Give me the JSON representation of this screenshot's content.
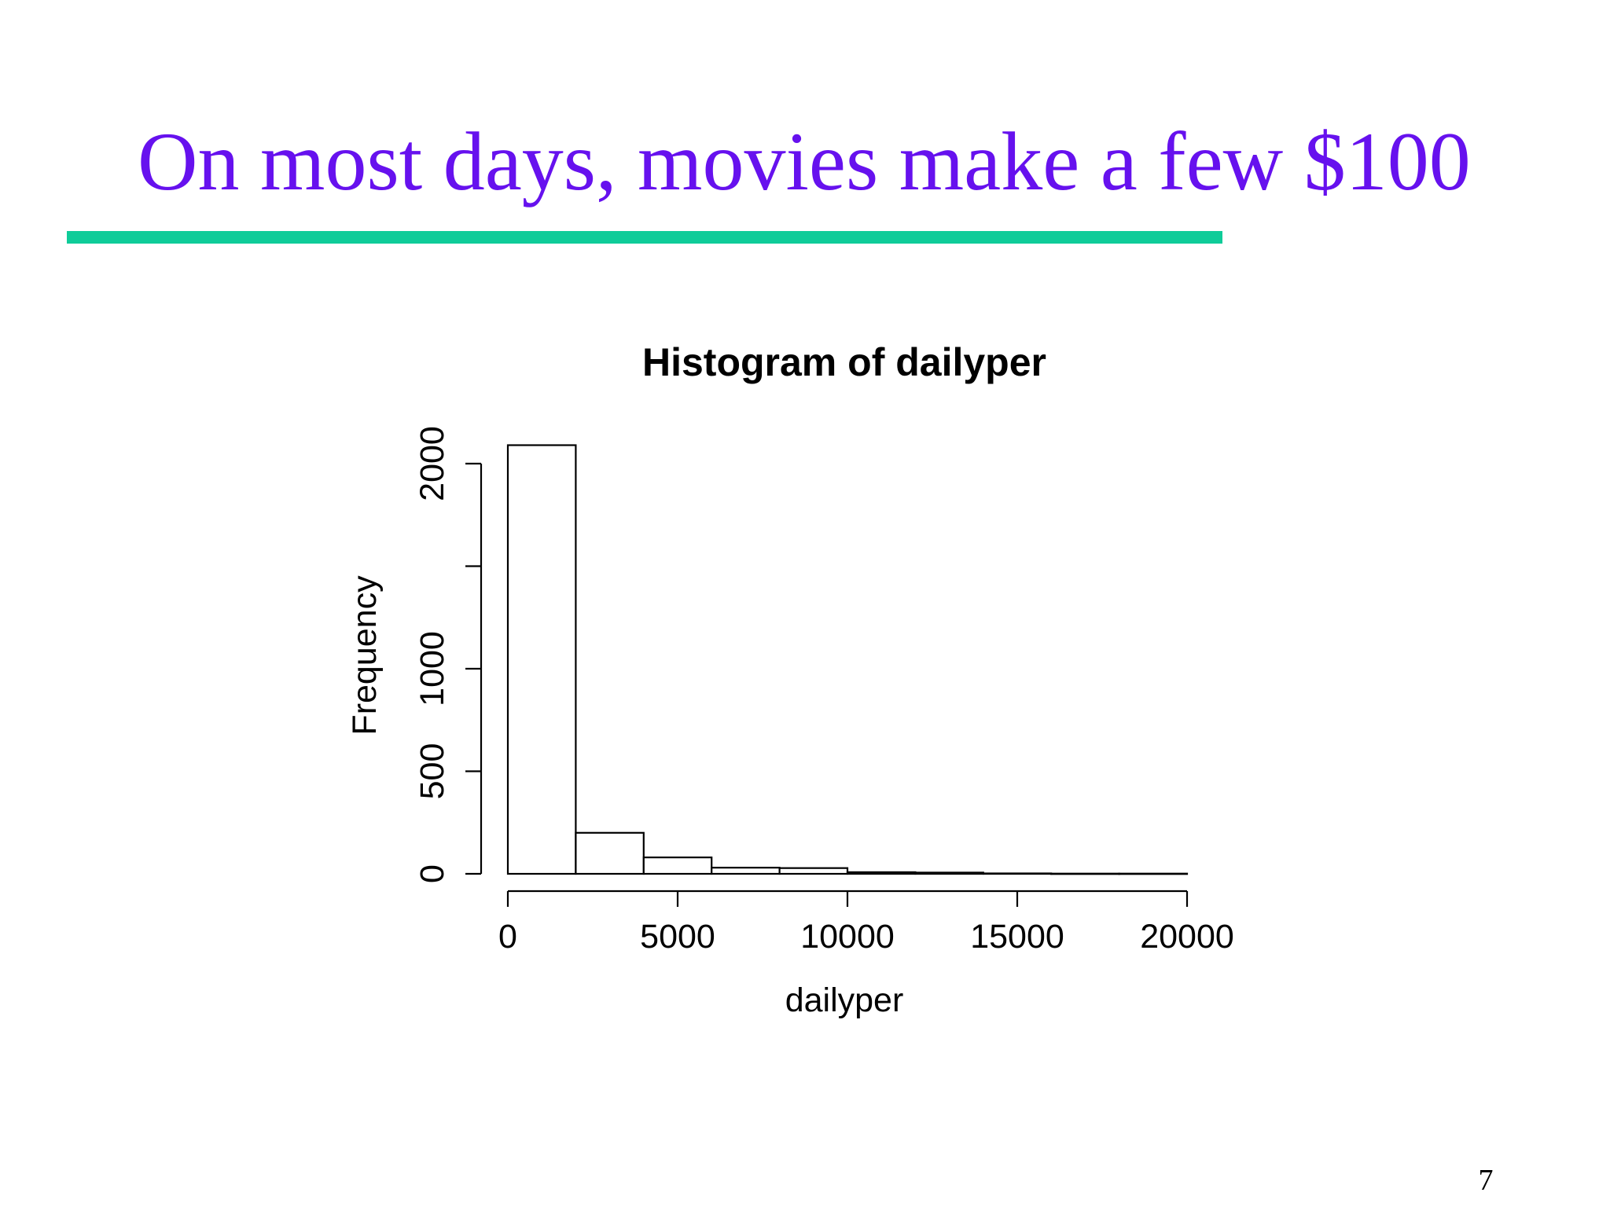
{
  "slide": {
    "title": "On most days, movies make a few $100",
    "page_number": "7",
    "title_color": "#6611ee",
    "rule_color": "#0fcc99"
  },
  "chart_data": {
    "type": "bar",
    "title": "Histogram of dailyper",
    "xlabel": "dailyper",
    "ylabel": "Frequency",
    "bins": [
      {
        "start": 0,
        "end": 2000,
        "count": 2090
      },
      {
        "start": 2000,
        "end": 4000,
        "count": 200
      },
      {
        "start": 4000,
        "end": 6000,
        "count": 80
      },
      {
        "start": 6000,
        "end": 8000,
        "count": 30
      },
      {
        "start": 8000,
        "end": 10000,
        "count": 28
      },
      {
        "start": 10000,
        "end": 12000,
        "count": 8
      },
      {
        "start": 12000,
        "end": 14000,
        "count": 6
      },
      {
        "start": 14000,
        "end": 16000,
        "count": 2
      },
      {
        "start": 16000,
        "end": 18000,
        "count": 1
      },
      {
        "start": 18000,
        "end": 20000,
        "count": 1
      }
    ],
    "xlim": [
      0,
      20000
    ],
    "ylim": [
      0,
      2000
    ],
    "x_ticks": [
      0,
      5000,
      10000,
      15000,
      20000
    ],
    "x_tick_labels": [
      "0",
      "5000",
      "10000",
      "15000",
      "20000"
    ],
    "y_ticks": [
      0,
      500,
      1000,
      1500,
      2000
    ],
    "y_tick_labels": [
      "0",
      "500",
      "1000",
      "",
      "2000"
    ],
    "grid": false,
    "legend": "none"
  }
}
